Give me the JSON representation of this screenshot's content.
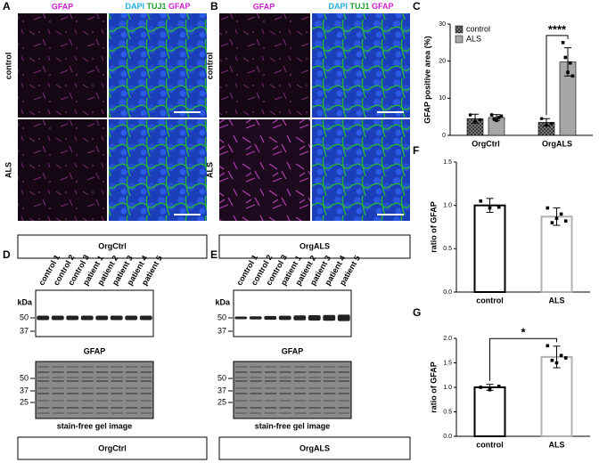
{
  "panel_labels": [
    "A",
    "B",
    "C",
    "D",
    "E",
    "F",
    "G"
  ],
  "stain_single": "GFAP",
  "stain_merge": [
    "DAPI",
    "TUJ1",
    "GFAP"
  ],
  "row_labels": [
    "control",
    "ALS"
  ],
  "groups": [
    "OrgCtrl",
    "OrgALS"
  ],
  "lanes": [
    "control 1",
    "control 2",
    "control 3",
    "patient 1",
    "patient 2",
    "patient 3",
    "patient 4",
    "patient 5"
  ],
  "kda_unit": "kDa",
  "blot_markers": [
    50,
    37
  ],
  "gel_markers": [
    50,
    37,
    25
  ],
  "blot_label": "GFAP",
  "gel_label": "stain-free gel image",
  "chart_data": [
    {
      "type": "bar",
      "ylabel": "GFAP positive area (%)",
      "categories": [
        "OrgCtrl",
        "OrgALS"
      ],
      "series": [
        {
          "name": "control",
          "color": "#3a3a3a",
          "values": [
            4.5,
            3.5
          ],
          "errors": [
            1.2,
            1.0
          ],
          "points": [
            [
              5.5,
              3.8,
              4.2
            ],
            [
              4.5,
              2.8,
              3.2
            ]
          ]
        },
        {
          "name": "ALS",
          "color": "#a6a6a6",
          "values": [
            4.8,
            19.8
          ],
          "errors": [
            0.8,
            3.8
          ],
          "points": [
            [
              5.5,
              4.5,
              4.0,
              4.8,
              5.2
            ],
            [
              25,
              21,
              17,
              19.5,
              16
            ]
          ]
        }
      ],
      "ylim": [
        0,
        30
      ],
      "yticks": [
        0,
        10,
        20,
        30
      ],
      "legend": "upper left",
      "annotation": "****"
    },
    {
      "type": "bar",
      "ylabel": "ratio of GFAP",
      "categories": [
        "control",
        "ALS"
      ],
      "series": [
        {
          "colors": [
            "#000000",
            "#b0b0b0"
          ],
          "values": [
            1.0,
            0.87
          ],
          "errors": [
            0.08,
            0.1
          ],
          "points": [
            [
              1.05,
              0.97,
              0.98
            ],
            [
              0.97,
              0.8,
              0.85,
              0.9,
              0.82
            ]
          ]
        }
      ],
      "ylim": [
        0,
        1.5
      ],
      "yticks": [
        {
          "value": 0,
          "label": "0.0"
        },
        {
          "value": 0.5,
          "label": "0.5"
        },
        {
          "value": 1,
          "label": "1.0"
        },
        {
          "value": 1.5,
          "label": "1.5"
        }
      ]
    },
    {
      "type": "bar",
      "ylabel": "ratio of GFAP",
      "categories": [
        "control",
        "ALS"
      ],
      "series": [
        {
          "colors": [
            "#000000",
            "#b0b0b0"
          ],
          "values": [
            1.0,
            1.62
          ],
          "errors": [
            0.06,
            0.22
          ],
          "points": [
            [
              1.0,
              0.95,
              1.02
            ],
            [
              1.85,
              1.55,
              1.5,
              1.65,
              1.6
            ]
          ]
        }
      ],
      "ylim": [
        0,
        2
      ],
      "yticks": [
        {
          "value": 0,
          "label": "0.0"
        },
        {
          "value": 0.5,
          "label": "0.5"
        },
        {
          "value": 1,
          "label": "1.0"
        },
        {
          "value": 1.5,
          "label": "1.5"
        },
        {
          "value": 2,
          "label": "2.0"
        }
      ],
      "annotation": "*"
    }
  ]
}
